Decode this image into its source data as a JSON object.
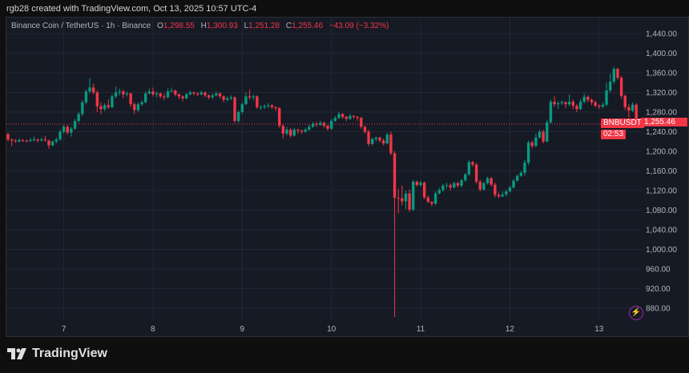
{
  "credit": "rgb28 created with TradingView.com, Oct 13, 2025 10:57 UTC-4",
  "legend": {
    "title": "Binance Coin / TetherUS · 1h · Binance",
    "o_label": "O",
    "o": "1,298.55",
    "h_label": "H",
    "h": "1,300.93",
    "l_label": "L",
    "l": "1,251.28",
    "c_label": "C",
    "c": "1,255.46",
    "change": "−43.09 (−3.32%)"
  },
  "symbol_tag": "BNBUSDT",
  "last_price": "1,255.46",
  "countdown": "02:53",
  "logo_text": "TradingView",
  "colors": {
    "up": "#089981",
    "down": "#f23645",
    "background": "#161a25",
    "grid": "#232734",
    "alert_icon": "#9c27b0"
  },
  "icons": {
    "alert": "lightning-bolt-icon",
    "logo": "tradingview-logo-icon"
  },
  "chart_data": {
    "type": "candlestick",
    "interval": "1h",
    "x_tick_labels": [
      "7",
      "8",
      "9",
      "10",
      "11",
      "12",
      "13"
    ],
    "y_tick_labels": [
      "1,440.00",
      "1,400.00",
      "1,360.00",
      "1,320.00",
      "1,280.00",
      "1,240.00",
      "1,200.00",
      "1,160.00",
      "1,120.00",
      "1,080.00",
      "1,040.00",
      "1,000.00",
      "960.00",
      "920.00",
      "880.00"
    ],
    "ylim": [
      868,
      1468
    ],
    "grid": true,
    "first_open": 1235,
    "candles_hlc": [
      [
        1238,
        1220,
        1224
      ],
      [
        1226,
        1210,
        1222
      ],
      [
        1225,
        1217,
        1220
      ],
      [
        1226,
        1218,
        1223
      ],
      [
        1225,
        1219,
        1222
      ],
      [
        1224,
        1218,
        1221
      ],
      [
        1227,
        1219,
        1223
      ],
      [
        1230,
        1220,
        1224
      ],
      [
        1226,
        1218,
        1222
      ],
      [
        1228,
        1220,
        1224
      ],
      [
        1232,
        1220,
        1222
      ],
      [
        1224,
        1205,
        1212
      ],
      [
        1222,
        1210,
        1220
      ],
      [
        1228,
        1216,
        1224
      ],
      [
        1244,
        1222,
        1240
      ],
      [
        1254,
        1236,
        1250
      ],
      [
        1254,
        1234,
        1238
      ],
      [
        1250,
        1230,
        1246
      ],
      [
        1266,
        1244,
        1262
      ],
      [
        1280,
        1258,
        1276
      ],
      [
        1304,
        1272,
        1300
      ],
      [
        1326,
        1296,
        1322
      ],
      [
        1349,
        1318,
        1330
      ],
      [
        1338,
        1316,
        1320
      ],
      [
        1324,
        1280,
        1292
      ],
      [
        1300,
        1276,
        1286
      ],
      [
        1298,
        1282,
        1294
      ],
      [
        1306,
        1286,
        1290
      ],
      [
        1316,
        1288,
        1312
      ],
      [
        1332,
        1308,
        1320
      ],
      [
        1328,
        1314,
        1322
      ],
      [
        1326,
        1308,
        1316
      ],
      [
        1322,
        1312,
        1318
      ],
      [
        1320,
        1290,
        1296
      ],
      [
        1300,
        1276,
        1284
      ],
      [
        1300,
        1280,
        1296
      ],
      [
        1304,
        1292,
        1300
      ],
      [
        1322,
        1298,
        1318
      ],
      [
        1328,
        1316,
        1322
      ],
      [
        1330,
        1312,
        1316
      ],
      [
        1322,
        1310,
        1318
      ],
      [
        1320,
        1308,
        1312
      ],
      [
        1318,
        1304,
        1310
      ],
      [
        1328,
        1308,
        1322
      ],
      [
        1330,
        1320,
        1324
      ],
      [
        1326,
        1312,
        1316
      ],
      [
        1318,
        1306,
        1312
      ],
      [
        1314,
        1302,
        1308
      ],
      [
        1320,
        1306,
        1316
      ],
      [
        1324,
        1314,
        1320
      ],
      [
        1322,
        1314,
        1318
      ],
      [
        1320,
        1312,
        1316
      ],
      [
        1324,
        1314,
        1320
      ],
      [
        1322,
        1310,
        1314
      ],
      [
        1316,
        1306,
        1310
      ],
      [
        1318,
        1306,
        1314
      ],
      [
        1322,
        1312,
        1318
      ],
      [
        1320,
        1308,
        1312
      ],
      [
        1314,
        1300,
        1305
      ],
      [
        1312,
        1302,
        1308
      ],
      [
        1314,
        1304,
        1310
      ],
      [
        1312,
        1258,
        1262
      ],
      [
        1284,
        1258,
        1280
      ],
      [
        1300,
        1276,
        1296
      ],
      [
        1320,
        1294,
        1312
      ],
      [
        1326,
        1306,
        1310
      ],
      [
        1316,
        1304,
        1312
      ],
      [
        1314,
        1286,
        1290
      ],
      [
        1294,
        1284,
        1290
      ],
      [
        1296,
        1286,
        1292
      ],
      [
        1298,
        1288,
        1294
      ],
      [
        1296,
        1286,
        1290
      ],
      [
        1292,
        1282,
        1288
      ],
      [
        1290,
        1248,
        1252
      ],
      [
        1256,
        1226,
        1236
      ],
      [
        1250,
        1232,
        1244
      ],
      [
        1248,
        1228,
        1232
      ],
      [
        1248,
        1230,
        1244
      ],
      [
        1246,
        1236,
        1242
      ],
      [
        1244,
        1236,
        1240
      ],
      [
        1248,
        1238,
        1244
      ],
      [
        1254,
        1242,
        1250
      ],
      [
        1260,
        1248,
        1256
      ],
      [
        1260,
        1250,
        1254
      ],
      [
        1262,
        1252,
        1258
      ],
      [
        1260,
        1248,
        1252
      ],
      [
        1254,
        1242,
        1246
      ],
      [
        1266,
        1244,
        1262
      ],
      [
        1272,
        1260,
        1268
      ],
      [
        1280,
        1266,
        1276
      ],
      [
        1278,
        1266,
        1270
      ],
      [
        1272,
        1262,
        1266
      ],
      [
        1276,
        1264,
        1272
      ],
      [
        1274,
        1266,
        1270
      ],
      [
        1272,
        1262,
        1268
      ],
      [
        1270,
        1246,
        1250
      ],
      [
        1252,
        1236,
        1240
      ],
      [
        1244,
        1210,
        1215
      ],
      [
        1228,
        1212,
        1225
      ],
      [
        1230,
        1220,
        1228
      ],
      [
        1230,
        1218,
        1222
      ],
      [
        1226,
        1212,
        1216
      ],
      [
        1238,
        1214,
        1234
      ],
      [
        1240,
        1192,
        1196
      ],
      [
        1200,
        862,
        1105
      ],
      [
        1123,
        1073,
        1104
      ],
      [
        1130,
        1090,
        1098
      ],
      [
        1120,
        1082,
        1114
      ],
      [
        1122,
        1076,
        1081
      ],
      [
        1142,
        1078,
        1138
      ],
      [
        1140,
        1128,
        1131
      ],
      [
        1140,
        1128,
        1136
      ],
      [
        1138,
        1102,
        1106
      ],
      [
        1110,
        1094,
        1097
      ],
      [
        1098,
        1088,
        1093
      ],
      [
        1118,
        1090,
        1114
      ],
      [
        1126,
        1112,
        1121
      ],
      [
        1134,
        1118,
        1130
      ],
      [
        1136,
        1124,
        1131
      ],
      [
        1134,
        1120,
        1126
      ],
      [
        1138,
        1124,
        1135
      ],
      [
        1138,
        1126,
        1130
      ],
      [
        1144,
        1126,
        1141
      ],
      [
        1156,
        1138,
        1153
      ],
      [
        1182,
        1150,
        1178
      ],
      [
        1180,
        1168,
        1173
      ],
      [
        1176,
        1134,
        1138
      ],
      [
        1142,
        1118,
        1122
      ],
      [
        1138,
        1120,
        1135
      ],
      [
        1148,
        1132,
        1145
      ],
      [
        1148,
        1128,
        1132
      ],
      [
        1136,
        1106,
        1111
      ],
      [
        1116,
        1104,
        1108
      ],
      [
        1118,
        1106,
        1112
      ],
      [
        1122,
        1108,
        1118
      ],
      [
        1130,
        1116,
        1126
      ],
      [
        1144,
        1124,
        1140
      ],
      [
        1152,
        1138,
        1150
      ],
      [
        1160,
        1148,
        1156
      ],
      [
        1182,
        1150,
        1177
      ],
      [
        1222,
        1172,
        1218
      ],
      [
        1222,
        1206,
        1211
      ],
      [
        1236,
        1208,
        1228
      ],
      [
        1244,
        1226,
        1240
      ],
      [
        1244,
        1216,
        1220
      ],
      [
        1264,
        1218,
        1259
      ],
      [
        1306,
        1256,
        1301
      ],
      [
        1312,
        1290,
        1296
      ],
      [
        1302,
        1286,
        1298
      ],
      [
        1304,
        1294,
        1300
      ],
      [
        1302,
        1288,
        1296
      ],
      [
        1316,
        1292,
        1301
      ],
      [
        1306,
        1286,
        1293
      ],
      [
        1296,
        1280,
        1286
      ],
      [
        1306,
        1284,
        1301
      ],
      [
        1318,
        1298,
        1311
      ],
      [
        1314,
        1300,
        1305
      ],
      [
        1308,
        1294,
        1300
      ],
      [
        1304,
        1290,
        1293
      ],
      [
        1296,
        1286,
        1291
      ],
      [
        1300,
        1288,
        1295
      ],
      [
        1340,
        1292,
        1324
      ],
      [
        1358,
        1320,
        1342
      ],
      [
        1373,
        1338,
        1368
      ],
      [
        1370,
        1346,
        1350
      ],
      [
        1354,
        1308,
        1313
      ],
      [
        1316,
        1284,
        1290
      ],
      [
        1296,
        1268,
        1283
      ],
      [
        1300,
        1280,
        1295
      ],
      [
        1298,
        1251,
        1255.46
      ]
    ]
  }
}
